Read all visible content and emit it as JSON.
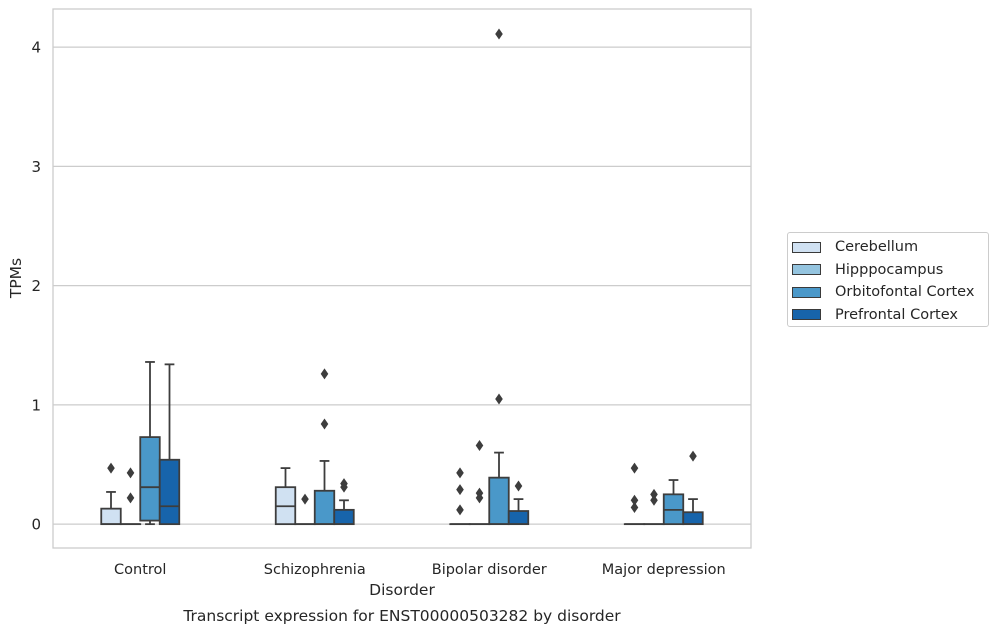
{
  "figure": {
    "caption": "Transcript expression for ENST00000503282 by disorder"
  },
  "chart_data": {
    "type": "box",
    "xlabel": "Disorder",
    "ylabel": "TPMs",
    "ylim": [
      -0.2,
      4.32
    ],
    "yticks": [
      0,
      1,
      2,
      3,
      4
    ],
    "ytick_labels": [
      "0",
      "1",
      "2",
      "3",
      "4"
    ],
    "grid": "horizontal",
    "legend_position": "right",
    "categories": [
      "Control",
      "Schizophrenia",
      "Bipolar disorder",
      "Major depression"
    ],
    "series": [
      {
        "name": "Cerebellum",
        "color": "#d0e1f2",
        "boxes": [
          {
            "q1": 0,
            "median": 0,
            "q3": 0.13,
            "whislo": 0,
            "whishi": 0.27,
            "fliers": [
              0.47
            ]
          },
          {
            "q1": 0,
            "median": 0.15,
            "q3": 0.31,
            "whislo": 0,
            "whishi": 0.47,
            "fliers": []
          },
          {
            "q1": 0,
            "median": 0,
            "q3": 0,
            "whislo": 0,
            "whishi": 0,
            "fliers": [
              0.12,
              0.29,
              0.43
            ]
          },
          {
            "q1": 0,
            "median": 0,
            "q3": 0,
            "whislo": 0,
            "whishi": 0,
            "fliers": [
              0.14,
              0.2,
              0.47
            ]
          }
        ]
      },
      {
        "name": "Hipppocampus",
        "color": "#94c4df",
        "boxes": [
          {
            "q1": 0,
            "median": 0,
            "q3": 0,
            "whislo": 0,
            "whishi": 0,
            "fliers": [
              0.22,
              0.43
            ]
          },
          {
            "q1": 0,
            "median": 0,
            "q3": 0,
            "whislo": 0,
            "whishi": 0,
            "fliers": [
              0.21
            ]
          },
          {
            "q1": 0,
            "median": 0,
            "q3": 0,
            "whislo": 0,
            "whishi": 0,
            "fliers": [
              0.22,
              0.26,
              0.66
            ]
          },
          {
            "q1": 0,
            "median": 0,
            "q3": 0,
            "whislo": 0,
            "whishi": 0,
            "fliers": [
              0.2,
              0.25
            ]
          }
        ]
      },
      {
        "name": "Orbitofontal Cortex",
        "color": "#4a98c9",
        "boxes": [
          {
            "q1": 0.03,
            "median": 0.31,
            "q3": 0.73,
            "whislo": 0,
            "whishi": 1.36,
            "fliers": []
          },
          {
            "q1": 0,
            "median": 0,
            "q3": 0.28,
            "whislo": 0,
            "whishi": 0.53,
            "fliers": [
              0.84,
              1.26
            ]
          },
          {
            "q1": 0,
            "median": 0,
            "q3": 0.39,
            "whislo": 0,
            "whishi": 0.6,
            "fliers": [
              1.05,
              4.11
            ]
          },
          {
            "q1": 0,
            "median": 0.12,
            "q3": 0.25,
            "whislo": 0,
            "whishi": 0.37,
            "fliers": []
          }
        ]
      },
      {
        "name": "Prefrontal Cortex",
        "color": "#1764ab",
        "boxes": [
          {
            "q1": 0,
            "median": 0.15,
            "q3": 0.54,
            "whislo": 0,
            "whishi": 1.34,
            "fliers": []
          },
          {
            "q1": 0,
            "median": 0,
            "q3": 0.12,
            "whislo": 0,
            "whishi": 0.2,
            "fliers": [
              0.31,
              0.34
            ]
          },
          {
            "q1": 0,
            "median": 0,
            "q3": 0.11,
            "whislo": 0,
            "whishi": 0.21,
            "fliers": [
              0.32
            ]
          },
          {
            "q1": 0,
            "median": 0,
            "q3": 0.1,
            "whislo": 0,
            "whishi": 0.21,
            "fliers": [
              0.57
            ]
          }
        ]
      }
    ]
  }
}
